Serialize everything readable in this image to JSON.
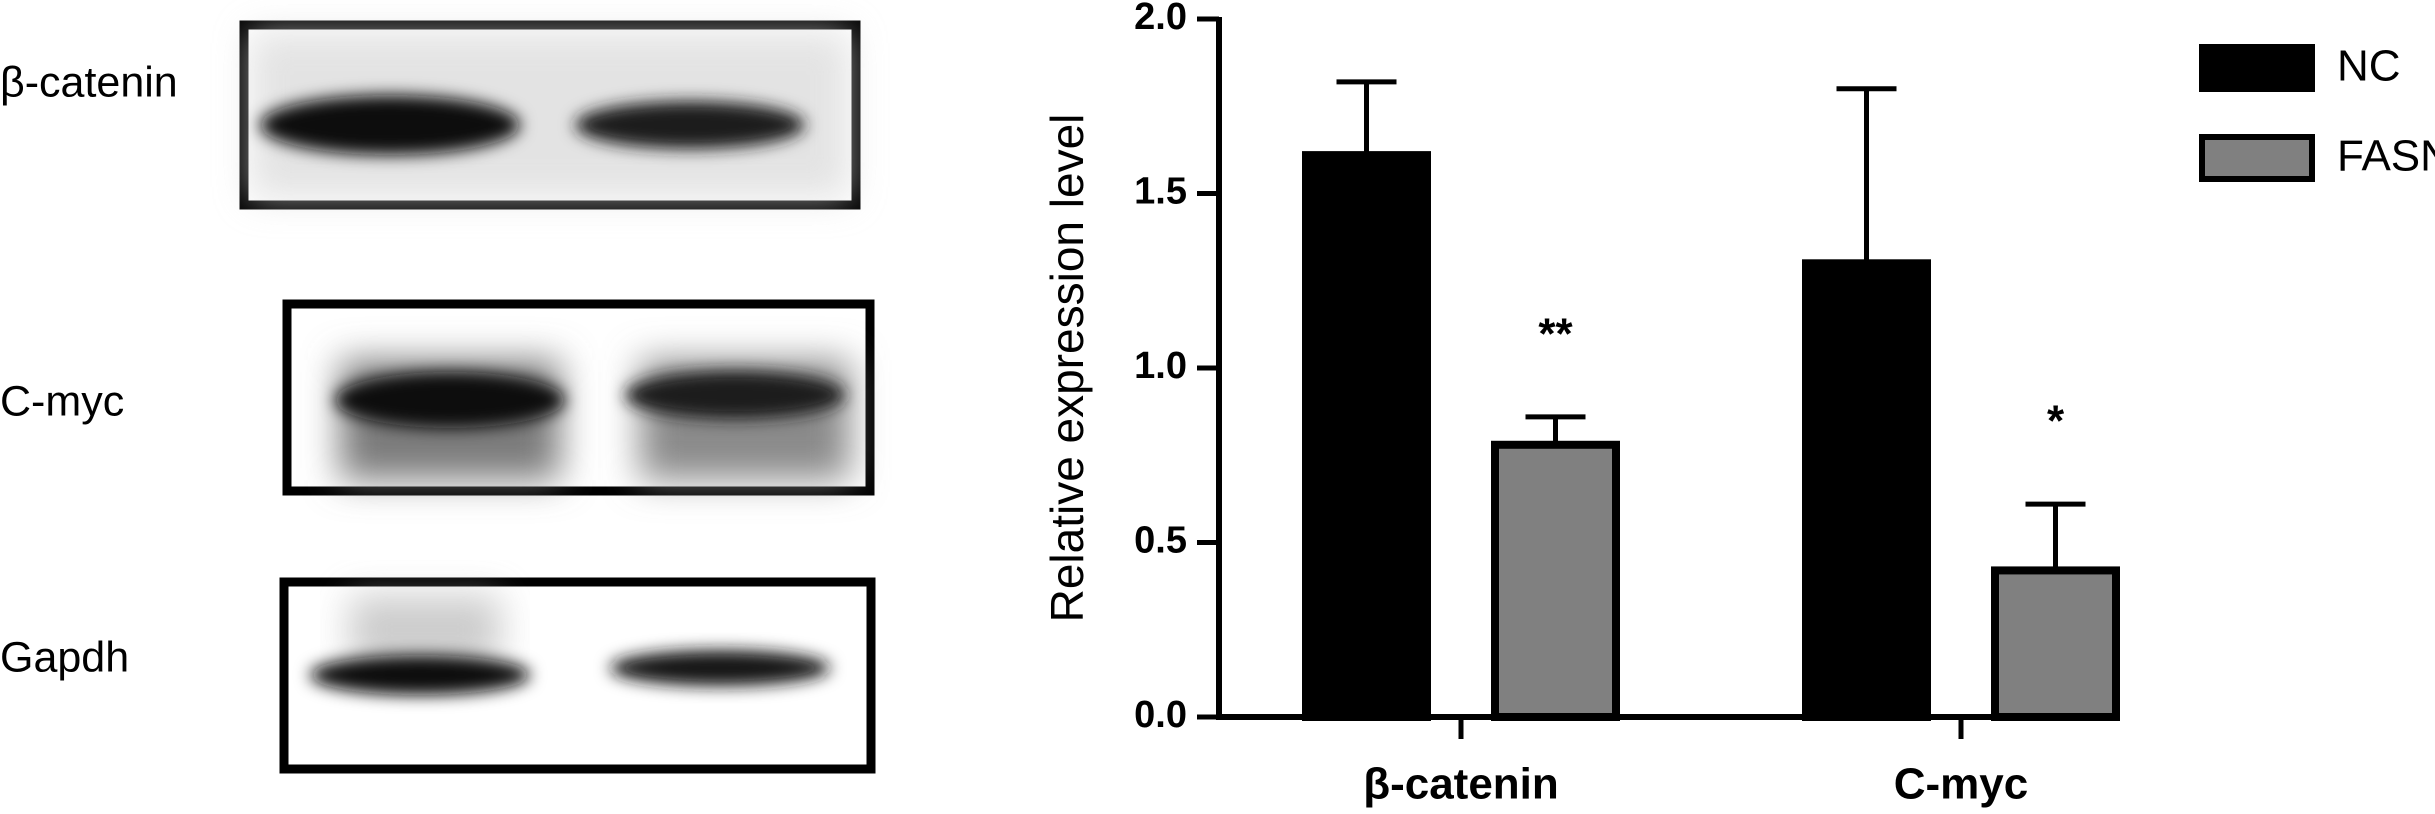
{
  "blot": {
    "labels": [
      "β-catenin",
      "C-myc",
      "Gapdh"
    ]
  },
  "chart_data": {
    "type": "bar",
    "y_label": "Relative expression level",
    "categories": [
      "β-catenin",
      "C-myc"
    ],
    "series": [
      {
        "name": "NC",
        "color": "#000000",
        "values": [
          1.61,
          1.3
        ],
        "errors": [
          0.21,
          0.5
        ]
      },
      {
        "name": "FASN",
        "color": "#808080",
        "values": [
          0.78,
          0.42
        ],
        "errors": [
          0.08,
          0.19
        ]
      }
    ],
    "annotations": [
      {
        "text": "**",
        "series": 1,
        "category": 0
      },
      {
        "text": "*",
        "series": 1,
        "category": 1
      }
    ],
    "ylim": [
      0,
      2
    ],
    "yticks": [
      {
        "value": 0,
        "label": "0.0"
      },
      {
        "value": 0.5,
        "label": "0.5"
      },
      {
        "value": 1,
        "label": "1.0"
      },
      {
        "value": 1.5,
        "label": "1.5"
      },
      {
        "value": 2,
        "label": "2.0"
      }
    ],
    "legend": "top-right"
  }
}
